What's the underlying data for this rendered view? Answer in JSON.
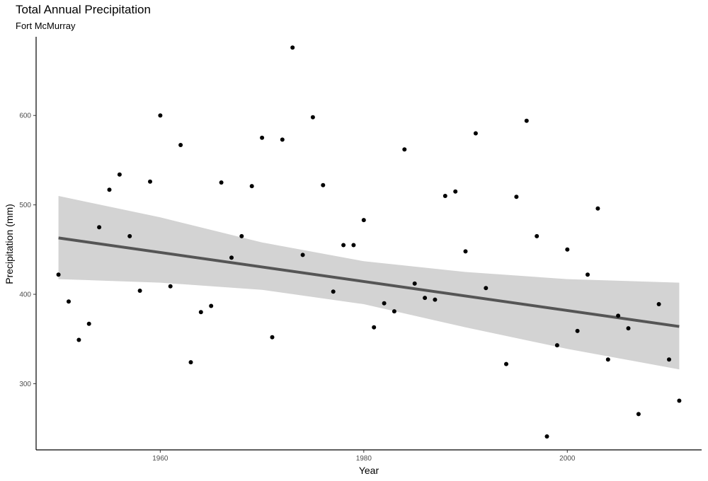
{
  "chart_data": {
    "type": "scatter",
    "title": "Total Annual Precipitation",
    "subtitle": "Fort McMurray",
    "xlabel": "Year",
    "ylabel": "Precipitation (mm)",
    "xlim": [
      1947.8,
      2013.2
    ],
    "ylim": [
      226,
      688
    ],
    "xticks": [
      1960,
      1980,
      2000
    ],
    "yticks": [
      300,
      400,
      500,
      600
    ],
    "grid": false,
    "point_color": "#000000",
    "band_color": "#d3d3d3",
    "line_color": "#555555",
    "points": [
      [
        1950,
        422
      ],
      [
        1951,
        392
      ],
      [
        1952,
        349
      ],
      [
        1953,
        367
      ],
      [
        1954,
        475
      ],
      [
        1955,
        517
      ],
      [
        1956,
        534
      ],
      [
        1957,
        465
      ],
      [
        1958,
        404
      ],
      [
        1959,
        526
      ],
      [
        1960,
        600
      ],
      [
        1961,
        409
      ],
      [
        1962,
        567
      ],
      [
        1963,
        324
      ],
      [
        1964,
        380
      ],
      [
        1965,
        387
      ],
      [
        1966,
        525
      ],
      [
        1967,
        441
      ],
      [
        1968,
        465
      ],
      [
        1969,
        521
      ],
      [
        1970,
        575
      ],
      [
        1971,
        352
      ],
      [
        1972,
        573
      ],
      [
        1973,
        676
      ],
      [
        1974,
        444
      ],
      [
        1975,
        598
      ],
      [
        1976,
        522
      ],
      [
        1977,
        403
      ],
      [
        1978,
        455
      ],
      [
        1979,
        455
      ],
      [
        1980,
        483
      ],
      [
        1981,
        363
      ],
      [
        1982,
        390
      ],
      [
        1983,
        381
      ],
      [
        1984,
        562
      ],
      [
        1985,
        412
      ],
      [
        1986,
        396
      ],
      [
        1987,
        394
      ],
      [
        1988,
        510
      ],
      [
        1989,
        515
      ],
      [
        1990,
        448
      ],
      [
        1991,
        580
      ],
      [
        1992,
        407
      ],
      [
        1994,
        322
      ],
      [
        1995,
        509
      ],
      [
        1996,
        594
      ],
      [
        1997,
        465
      ],
      [
        1998,
        241
      ],
      [
        1999,
        343
      ],
      [
        2000,
        450
      ],
      [
        2001,
        359
      ],
      [
        2002,
        422
      ],
      [
        2003,
        496
      ],
      [
        2004,
        327
      ],
      [
        2005,
        376
      ],
      [
        2006,
        362
      ],
      [
        2007,
        266
      ],
      [
        2009,
        389
      ],
      [
        2010,
        327
      ],
      [
        2011,
        281
      ]
    ],
    "trend": {
      "x": [
        1950,
        2011
      ],
      "y": [
        463,
        364
      ]
    },
    "band": [
      {
        "x": 1950,
        "lo": 417,
        "hi": 510
      },
      {
        "x": 1960,
        "lo": 413,
        "hi": 486
      },
      {
        "x": 1970,
        "lo": 405,
        "hi": 458
      },
      {
        "x": 1980,
        "lo": 389,
        "hi": 437
      },
      {
        "x": 1990,
        "lo": 363,
        "hi": 425
      },
      {
        "x": 2000,
        "lo": 339,
        "hi": 417
      },
      {
        "x": 2011,
        "lo": 316,
        "hi": 413
      }
    ]
  }
}
